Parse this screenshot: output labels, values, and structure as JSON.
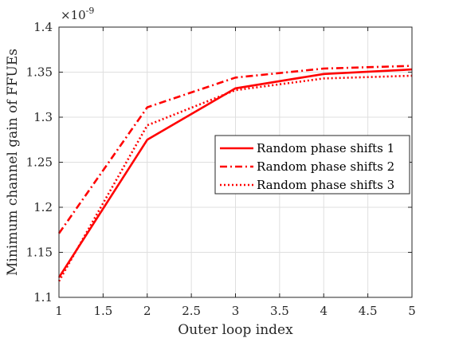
{
  "chart_data": {
    "type": "line",
    "title": "",
    "xlabel": "Outer loop index",
    "ylabel": "Minimum channel gain of FFUEs",
    "y_multiplier": "×10",
    "y_exponent": "-9",
    "xlim": [
      1,
      5
    ],
    "ylim": [
      1.1,
      1.4
    ],
    "grid": true,
    "legend_position": "right",
    "x_ticks": [
      "1",
      "1.5",
      "2",
      "2.5",
      "3",
      "3.5",
      "4",
      "4.5",
      "5"
    ],
    "y_ticks": [
      "1.1",
      "1.15",
      "1.2",
      "1.25",
      "1.3",
      "1.35",
      "1.4"
    ],
    "x": [
      1,
      2,
      3,
      4,
      5
    ],
    "series": [
      {
        "name": "Random phase shifts 1",
        "values": [
          1.122,
          1.275,
          1.332,
          1.348,
          1.353
        ],
        "color": "#ff0000",
        "dash": "solid"
      },
      {
        "name": "Random phase shifts 2",
        "values": [
          1.171,
          1.311,
          1.344,
          1.354,
          1.357
        ],
        "color": "#ff0000",
        "dash": "dashdot"
      },
      {
        "name": "Random phase shifts 3",
        "values": [
          1.118,
          1.291,
          1.33,
          1.343,
          1.346
        ],
        "color": "#ff0000",
        "dash": "dotted"
      }
    ]
  }
}
